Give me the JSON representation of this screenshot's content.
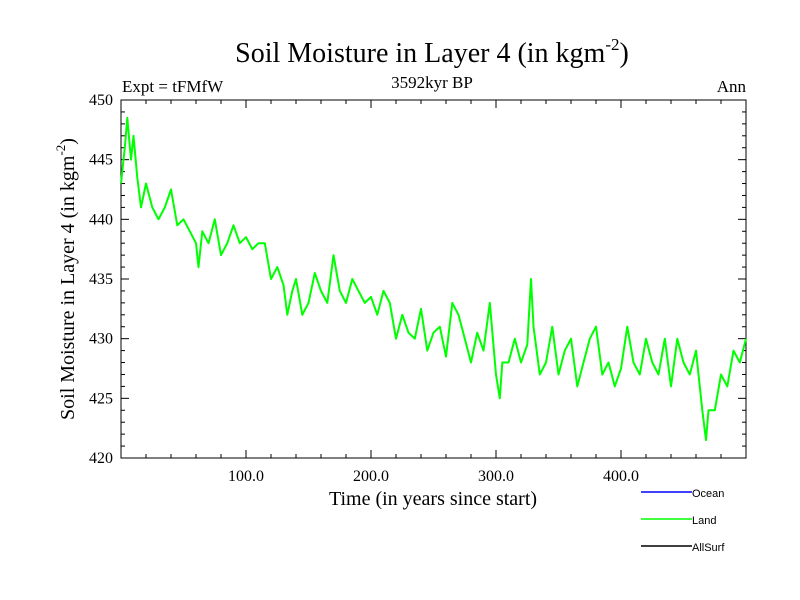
{
  "chart_data": {
    "type": "line",
    "title_main": "Soil Moisture in Layer 4 (in kgm",
    "title_exp": "-2",
    "title_close": ")",
    "subtitle_left": "Expt = tFMfW",
    "subtitle_center": "3592kyr BP",
    "subtitle_right": "Ann",
    "xlabel": "Time (in years since start)",
    "ylabel_main": "Soil Moisture in Layer 4 (in kgm",
    "ylabel_exp": "-2",
    "ylabel_close": ")",
    "xlim": [
      0,
      500
    ],
    "ylim": [
      420,
      450
    ],
    "xticks": [
      100,
      200,
      300,
      400
    ],
    "xtick_labels": [
      "100.0",
      "200.0",
      "300.0",
      "400.0"
    ],
    "yticks": [
      420,
      425,
      430,
      435,
      440,
      445,
      450
    ],
    "ytick_labels": [
      "420",
      "425",
      "430",
      "435",
      "440",
      "445",
      "450"
    ],
    "legend": [
      {
        "name": "Ocean",
        "color": "#0000ff"
      },
      {
        "name": "Land",
        "color": "#00ff00"
      },
      {
        "name": "AllSurf",
        "color": "#000000"
      }
    ],
    "series": [
      {
        "name": "Land",
        "color": "#00ff00",
        "x": [
          0,
          3,
          5,
          8,
          10,
          13,
          16,
          20,
          25,
          30,
          35,
          40,
          45,
          50,
          55,
          60,
          62,
          65,
          70,
          75,
          80,
          85,
          90,
          95,
          100,
          105,
          110,
          115,
          120,
          125,
          130,
          133,
          137,
          140,
          145,
          150,
          155,
          160,
          165,
          170,
          175,
          180,
          185,
          190,
          195,
          200,
          205,
          210,
          215,
          220,
          225,
          230,
          235,
          240,
          245,
          250,
          255,
          260,
          265,
          270,
          275,
          280,
          285,
          290,
          295,
          300,
          303,
          305,
          310,
          315,
          320,
          325,
          328,
          330,
          335,
          340,
          345,
          350,
          355,
          360,
          365,
          370,
          375,
          380,
          385,
          390,
          395,
          400,
          405,
          410,
          415,
          420,
          425,
          430,
          435,
          440,
          445,
          450,
          455,
          460,
          465,
          468,
          470,
          475,
          480,
          485,
          490,
          495,
          500
        ],
        "values": [
          443,
          446,
          448.5,
          445,
          447,
          443.5,
          441,
          443,
          441,
          440,
          441,
          442.5,
          439.5,
          440,
          439,
          438,
          436,
          439,
          438,
          440,
          437,
          438,
          439.5,
          438,
          438.5,
          437.5,
          438,
          438,
          435,
          436,
          434.5,
          432,
          434,
          435,
          432,
          433,
          435.5,
          434,
          433,
          437,
          434,
          433,
          435,
          434,
          433,
          433.5,
          432,
          434,
          433,
          430,
          432,
          430.5,
          430,
          432.5,
          429,
          430.5,
          431,
          428.5,
          433,
          432,
          430,
          428,
          430.5,
          429,
          433,
          427,
          425,
          428,
          428,
          430,
          428,
          429.5,
          435,
          431,
          427,
          428,
          431,
          427,
          429,
          430,
          426,
          428,
          430,
          431,
          427,
          428,
          426,
          427.5,
          431,
          428,
          427,
          430,
          428,
          427,
          430,
          426,
          430,
          428,
          427,
          429,
          424,
          421.5,
          424,
          424,
          427,
          426,
          429,
          428,
          430
        ]
      }
    ]
  }
}
